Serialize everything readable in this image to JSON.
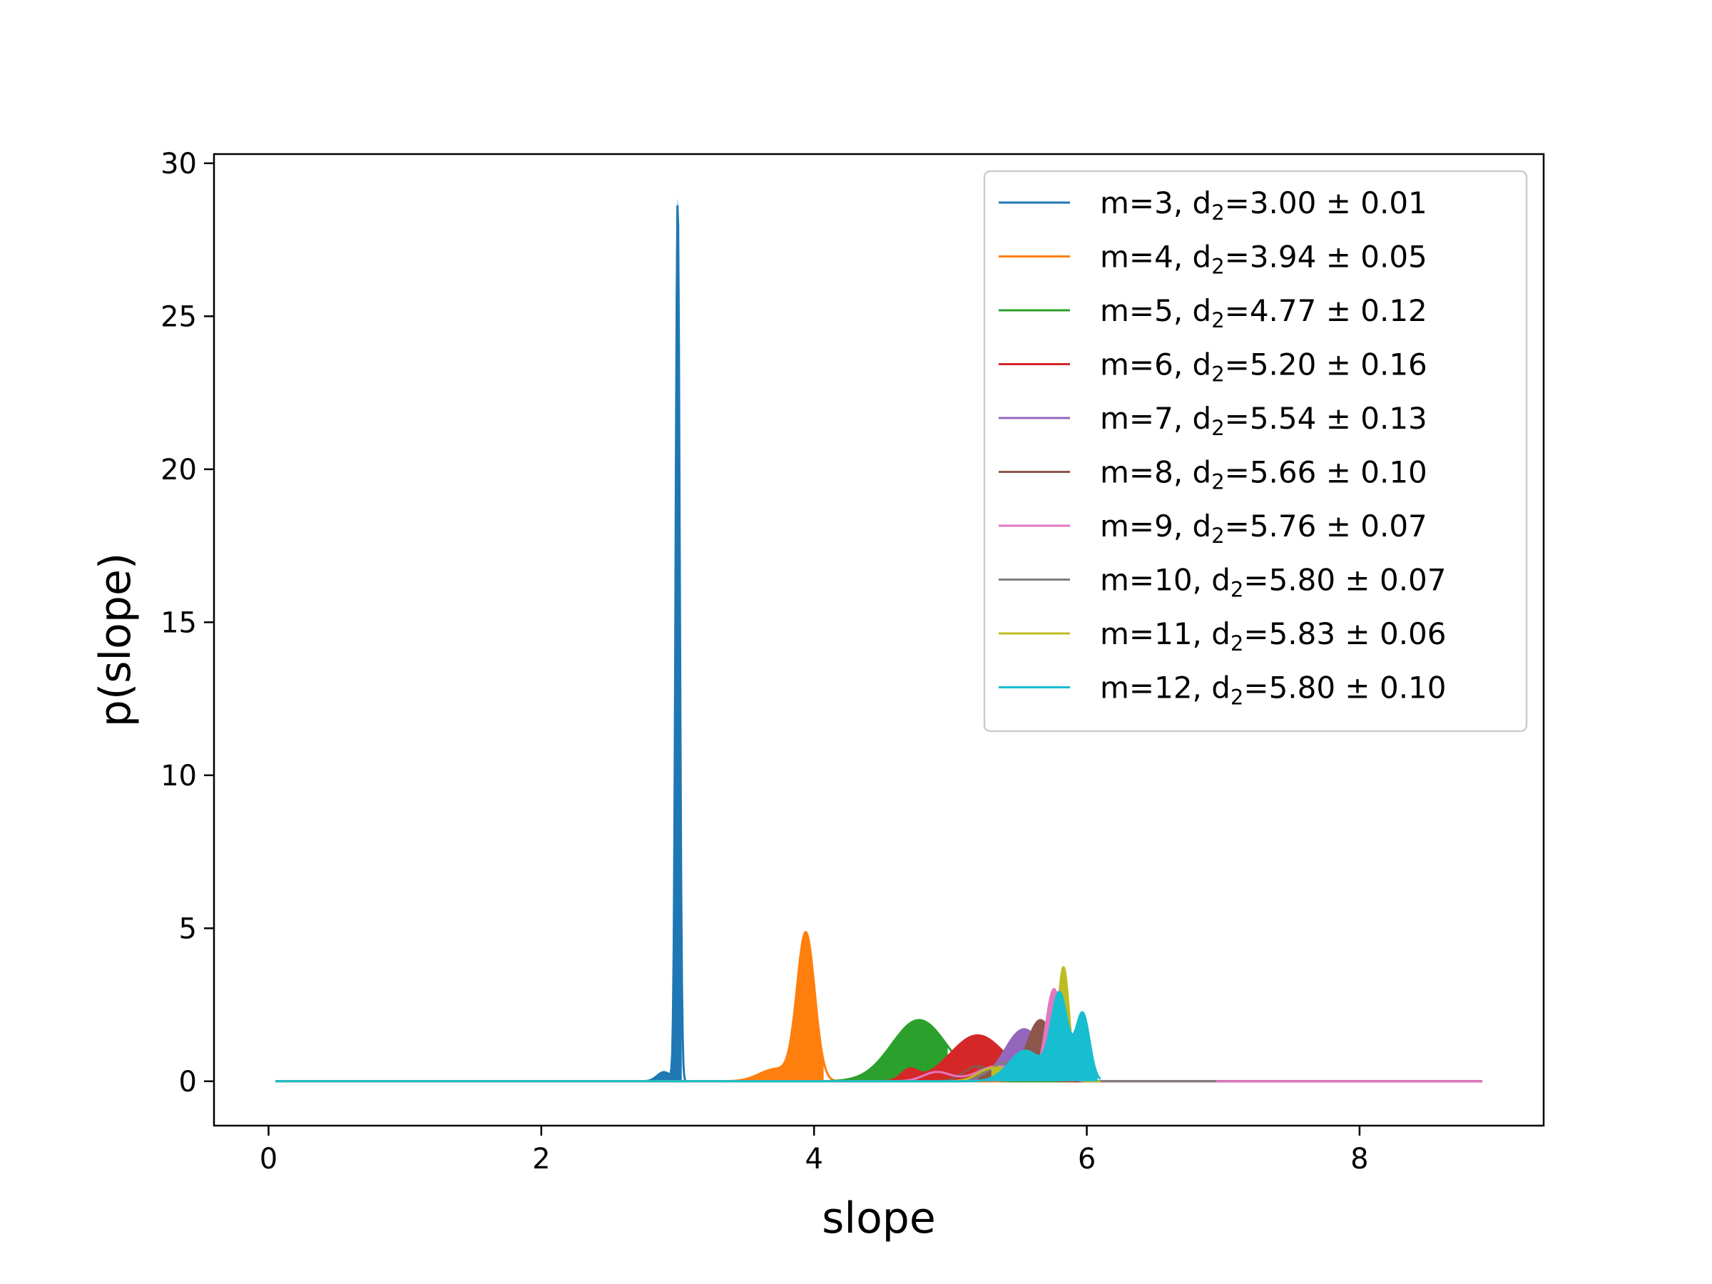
{
  "chart_data": {
    "type": "area",
    "title": "",
    "xlabel": "slope",
    "ylabel": "p(slope)",
    "xlim": [
      -0.4,
      9.35
    ],
    "ylim": [
      -1.45,
      30.3
    ],
    "xticks": [
      0,
      2,
      4,
      6,
      8
    ],
    "yticks": [
      0,
      5,
      10,
      15,
      20,
      25,
      30
    ],
    "grid": false,
    "legend_position": "top-right",
    "series": [
      {
        "label_prefix": "m=3, d",
        "label_sub": "2",
        "label_suffix": "=3.00 ± 0.01",
        "color": "#1f77b4",
        "peaks": [
          {
            "mu": 3.0,
            "sigma": 0.015,
            "amp": 28.8
          },
          {
            "mu": 2.9,
            "sigma": 0.05,
            "amp": 0.3
          }
        ],
        "fill_range": [
          2.8,
          3.03
        ],
        "line_range": [
          0.05,
          8.9
        ]
      },
      {
        "label_prefix": "m=4, d",
        "label_sub": "2",
        "label_suffix": "=3.94 ± 0.05",
        "color": "#ff7f0e",
        "peaks": [
          {
            "mu": 3.94,
            "sigma": 0.065,
            "amp": 4.8
          },
          {
            "mu": 3.72,
            "sigma": 0.12,
            "amp": 0.4
          }
        ],
        "fill_range": [
          3.5,
          4.07
        ],
        "line_range": [
          0.05,
          8.9
        ]
      },
      {
        "label_prefix": "m=5, d",
        "label_sub": "2",
        "label_suffix": "=4.77 ± 0.12",
        "color": "#2ca02c",
        "peaks": [
          {
            "mu": 4.77,
            "sigma": 0.2,
            "amp": 2.0
          }
        ],
        "fill_range": [
          4.0,
          4.98
        ],
        "line_range": [
          0.05,
          8.9
        ]
      },
      {
        "label_prefix": "m=6, d",
        "label_sub": "2",
        "label_suffix": "=5.20 ± 0.16",
        "color": "#d62728",
        "peaks": [
          {
            "mu": 5.2,
            "sigma": 0.2,
            "amp": 1.5
          },
          {
            "mu": 4.7,
            "sigma": 0.06,
            "amp": 0.35
          }
        ],
        "fill_range": [
          4.4,
          5.45
        ],
        "line_range": [
          0.05,
          8.9
        ]
      },
      {
        "label_prefix": "m=7, d",
        "label_sub": "2",
        "label_suffix": "=5.54 ± 0.13",
        "color": "#9467bd",
        "peaks": [
          {
            "mu": 5.54,
            "sigma": 0.14,
            "amp": 1.7
          }
        ],
        "fill_range": [
          5.0,
          5.65
        ],
        "line_range": [
          0.05,
          8.9
        ]
      },
      {
        "label_prefix": "m=8, d",
        "label_sub": "2",
        "label_suffix": "=5.66 ± 0.10",
        "color": "#8c564b",
        "peaks": [
          {
            "mu": 5.66,
            "sigma": 0.1,
            "amp": 2.0
          },
          {
            "mu": 5.2,
            "sigma": 0.1,
            "amp": 0.5
          }
        ],
        "fill_range": [
          5.2,
          5.75
        ],
        "line_range": [
          0.05,
          8.9
        ]
      },
      {
        "label_prefix": "m=9, d",
        "label_sub": "2",
        "label_suffix": "=5.76 ± 0.07",
        "color": "#e377c2",
        "peaks": [
          {
            "mu": 5.76,
            "sigma": 0.06,
            "amp": 3.0
          },
          {
            "mu": 5.35,
            "sigma": 0.15,
            "amp": 0.5
          },
          {
            "mu": 4.9,
            "sigma": 0.1,
            "amp": 0.3
          }
        ],
        "fill_range": [
          5.3,
          5.82
        ],
        "line_range": [
          0.05,
          8.9
        ]
      },
      {
        "label_prefix": "m=10, d",
        "label_sub": "2",
        "label_suffix": "=5.80 ± 0.07",
        "color": "#7f7f7f",
        "peaks": [
          {
            "mu": 5.8,
            "sigma": 0.07,
            "amp": 2.5
          },
          {
            "mu": 5.4,
            "sigma": 0.12,
            "amp": 0.6
          }
        ],
        "fill_range": [
          5.4,
          5.9
        ],
        "line_range": [
          0.05,
          6.95
        ]
      },
      {
        "label_prefix": "m=11, d",
        "label_sub": "2",
        "label_suffix": "=5.83 ± 0.06",
        "color": "#bcbd22",
        "peaks": [
          {
            "mu": 5.83,
            "sigma": 0.04,
            "amp": 3.6
          },
          {
            "mu": 5.6,
            "sigma": 0.12,
            "amp": 0.8
          },
          {
            "mu": 5.3,
            "sigma": 0.1,
            "amp": 0.4
          }
        ],
        "fill_range": [
          5.3,
          5.92
        ],
        "line_range": [
          0.05,
          6.1
        ]
      },
      {
        "label_prefix": "m=12, d",
        "label_sub": "2",
        "label_suffix": "=5.80 ± 0.10",
        "color": "#17becf",
        "peaks": [
          {
            "mu": 5.8,
            "sigma": 0.06,
            "amp": 2.8
          },
          {
            "mu": 5.97,
            "sigma": 0.05,
            "amp": 2.2
          },
          {
            "mu": 5.55,
            "sigma": 0.12,
            "amp": 1.0
          }
        ],
        "fill_range": [
          5.25,
          6.08
        ],
        "line_range": [
          0.05,
          6.1
        ]
      }
    ]
  }
}
